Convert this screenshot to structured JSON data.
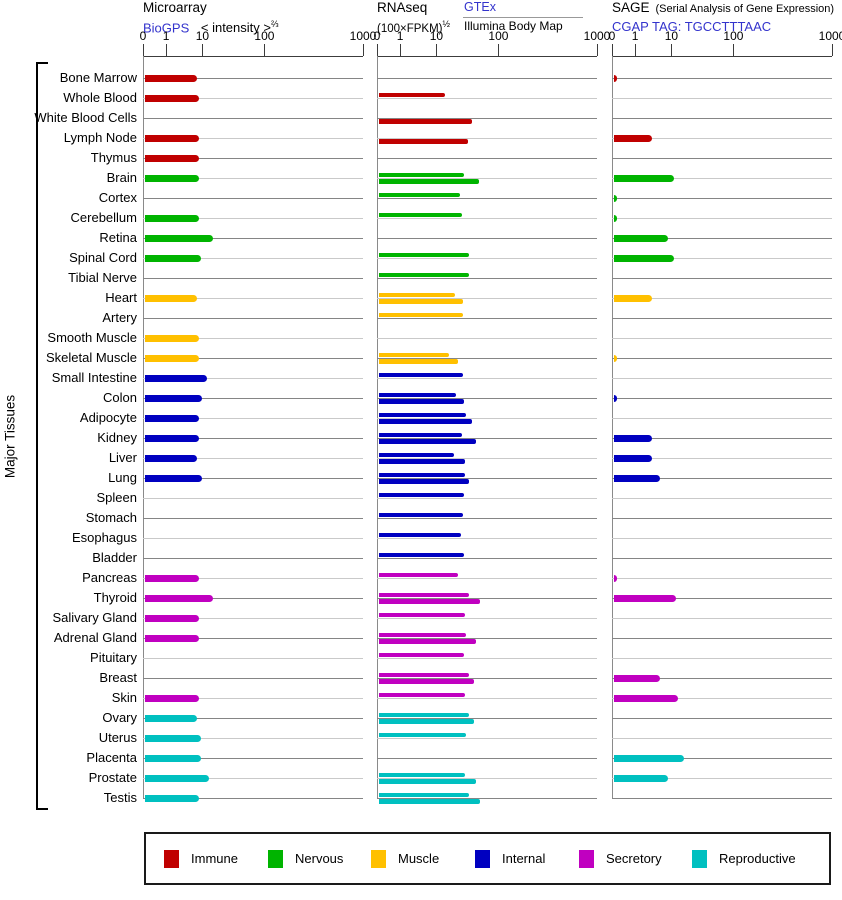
{
  "left_label": "Major Tissues",
  "headers": {
    "microarray": {
      "title": "Microarray",
      "link": "BioGPS",
      "subtitle": "< intensity >",
      "subtitle_sup": "⅔"
    },
    "rnaseq": {
      "title": "RNAseq",
      "subtitle": "(100×FPKM)",
      "subtitle_sup": "½",
      "link": "GTEx",
      "sublink": "Illumina Body Map"
    },
    "sage": {
      "title": "SAGE",
      "note": "(Serial Analysis of Gene Expression)",
      "link": "CGAP TAG: TGCCTTTAAC"
    }
  },
  "legend": {
    "items": [
      {
        "label": "Immune",
        "color": "#c00000"
      },
      {
        "label": "Nervous",
        "color": "#00b400"
      },
      {
        "label": "Muscle",
        "color": "#ffc000"
      },
      {
        "label": "Internal",
        "color": "#0000c0"
      },
      {
        "label": "Secretory",
        "color": "#c000c0"
      },
      {
        "label": "Reproductive",
        "color": "#00c0c0"
      }
    ]
  },
  "chart_data": {
    "type": "bar",
    "orientation": "horizontal",
    "panels": [
      "Microarray (BioGPS)",
      "RNAseq (GTEx / Illumina Body Map)",
      "SAGE (CGAP)"
    ],
    "axis_tick_labels": [
      "0",
      "1",
      "10",
      "100",
      "1000"
    ],
    "axis_tick_values": [
      0,
      1,
      10,
      100,
      1000
    ],
    "scale_positions": [
      0,
      0.105,
      0.27,
      0.552,
      1.0
    ],
    "xlim": [
      0,
      1000
    ],
    "grid": "horizontal-row-lines",
    "legend_position": "bottom",
    "group_colors": {
      "immune": "#c00000",
      "nervous": "#00b400",
      "muscle": "#ffc000",
      "internal": "#0000c0",
      "secretory": "#c000c0",
      "reproductive": "#00c0c0"
    },
    "series_note": "microarray and sage are single bars; rnaseq has two sub-bars per tissue: gtex (top) and illumina (bottom)",
    "tissues": [
      {
        "name": "Bone Marrow",
        "group": "immune",
        "microarray": 7,
        "gtex": null,
        "illumina": null,
        "sage": 0.15
      },
      {
        "name": "Whole Blood",
        "group": "immune",
        "microarray": 8,
        "gtex": 14,
        "illumina": null,
        "sage": null
      },
      {
        "name": "White Blood Cells",
        "group": "immune",
        "microarray": null,
        "gtex": null,
        "illumina": 38,
        "sage": null
      },
      {
        "name": "Lymph Node",
        "group": "immune",
        "microarray": 8,
        "gtex": null,
        "illumina": 32,
        "sage": 3
      },
      {
        "name": "Thymus",
        "group": "immune",
        "microarray": 8,
        "gtex": null,
        "illumina": null,
        "sage": null
      },
      {
        "name": "Brain",
        "group": "nervous",
        "microarray": 8,
        "gtex": 28,
        "illumina": 48,
        "sage": 11
      },
      {
        "name": "Cortex",
        "group": "nervous",
        "microarray": null,
        "gtex": 24,
        "illumina": null,
        "sage": 0.15
      },
      {
        "name": "Cerebellum",
        "group": "nervous",
        "microarray": 8,
        "gtex": 26,
        "illumina": null,
        "sage": 0.15
      },
      {
        "name": "Retina",
        "group": "nervous",
        "microarray": 15,
        "gtex": null,
        "illumina": null,
        "sage": 8
      },
      {
        "name": "Spinal Cord",
        "group": "nervous",
        "microarray": 9,
        "gtex": 33,
        "illumina": null,
        "sage": 11
      },
      {
        "name": "Tibial Nerve",
        "group": "nervous",
        "microarray": null,
        "gtex": 33,
        "illumina": null,
        "sage": null
      },
      {
        "name": "Heart",
        "group": "muscle",
        "microarray": 7,
        "gtex": 20,
        "illumina": 27,
        "sage": 3
      },
      {
        "name": "Artery",
        "group": "muscle",
        "microarray": null,
        "gtex": 27,
        "illumina": null,
        "sage": null
      },
      {
        "name": "Smooth Muscle",
        "group": "muscle",
        "microarray": 8,
        "gtex": null,
        "illumina": null,
        "sage": null
      },
      {
        "name": "Skeletal Muscle",
        "group": "muscle",
        "microarray": 8,
        "gtex": 16,
        "illumina": 22,
        "sage": 0.15
      },
      {
        "name": "Small Intestine",
        "group": "internal",
        "microarray": 12,
        "gtex": 27,
        "illumina": null,
        "sage": null
      },
      {
        "name": "Colon",
        "group": "internal",
        "microarray": 10,
        "gtex": 21,
        "illumina": 28,
        "sage": 0.15
      },
      {
        "name": "Adipocyte",
        "group": "internal",
        "microarray": 8,
        "gtex": 30,
        "illumina": 37,
        "sage": null
      },
      {
        "name": "Kidney",
        "group": "internal",
        "microarray": 8,
        "gtex": 26,
        "illumina": 43,
        "sage": 3
      },
      {
        "name": "Liver",
        "group": "internal",
        "microarray": 7,
        "gtex": 19,
        "illumina": 29,
        "sage": 3
      },
      {
        "name": "Lung",
        "group": "internal",
        "microarray": 10,
        "gtex": 29,
        "illumina": 34,
        "sage": 5
      },
      {
        "name": "Spleen",
        "group": "internal",
        "microarray": null,
        "gtex": 28,
        "illumina": null,
        "sage": null
      },
      {
        "name": "Stomach",
        "group": "internal",
        "microarray": null,
        "gtex": 27,
        "illumina": null,
        "sage": null
      },
      {
        "name": "Esophagus",
        "group": "internal",
        "microarray": null,
        "gtex": 25,
        "illumina": null,
        "sage": null
      },
      {
        "name": "Bladder",
        "group": "internal",
        "microarray": null,
        "gtex": 28,
        "illumina": null,
        "sage": null
      },
      {
        "name": "Pancreas",
        "group": "secretory",
        "microarray": 8,
        "gtex": 22,
        "illumina": null,
        "sage": 0.15
      },
      {
        "name": "Thyroid",
        "group": "secretory",
        "microarray": 15,
        "gtex": 33,
        "illumina": 50,
        "sage": 12
      },
      {
        "name": "Salivary Gland",
        "group": "secretory",
        "microarray": 8,
        "gtex": 29,
        "illumina": null,
        "sage": null
      },
      {
        "name": "Adrenal Gland",
        "group": "secretory",
        "microarray": 8,
        "gtex": 30,
        "illumina": 44,
        "sage": null
      },
      {
        "name": "Pituitary",
        "group": "secretory",
        "microarray": null,
        "gtex": 28,
        "illumina": null,
        "sage": null
      },
      {
        "name": "Breast",
        "group": "secretory",
        "microarray": null,
        "gtex": 33,
        "illumina": 41,
        "sage": 5
      },
      {
        "name": "Skin",
        "group": "secretory",
        "microarray": 8,
        "gtex": 29,
        "illumina": null,
        "sage": 13
      },
      {
        "name": "Ovary",
        "group": "reproductive",
        "microarray": 7,
        "gtex": 33,
        "illumina": 41,
        "sage": null
      },
      {
        "name": "Uterus",
        "group": "reproductive",
        "microarray": 9,
        "gtex": 30,
        "illumina": null,
        "sage": null
      },
      {
        "name": "Placenta",
        "group": "reproductive",
        "microarray": 9,
        "gtex": null,
        "illumina": null,
        "sage": 16
      },
      {
        "name": "Prostate",
        "group": "reproductive",
        "microarray": 13,
        "gtex": 29,
        "illumina": 43,
        "sage": 8
      },
      {
        "name": "Testis",
        "group": "reproductive",
        "microarray": 8,
        "gtex": 34,
        "illumina": 50,
        "sage": null
      }
    ]
  }
}
